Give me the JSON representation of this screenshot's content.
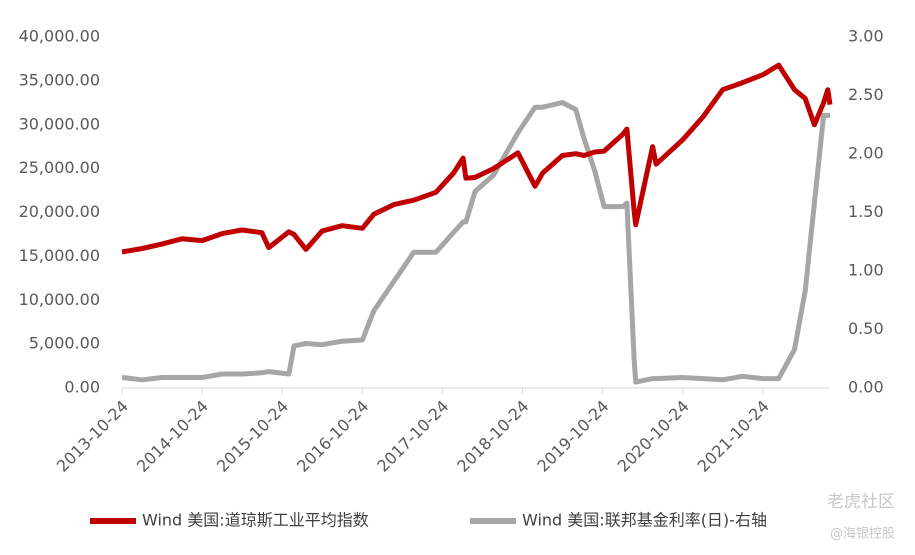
{
  "chart_data": {
    "type": "line",
    "x": [
      "2013-10-24",
      "2014-01-24",
      "2014-04-24",
      "2014-07-24",
      "2014-10-24",
      "2015-01-24",
      "2015-04-24",
      "2015-07-24",
      "2015-08-24",
      "2015-11-24",
      "2015-12-17",
      "2016-02-10",
      "2016-04-24",
      "2016-07-24",
      "2016-10-24",
      "2016-12-15",
      "2017-03-16",
      "2017-06-15",
      "2017-09-24",
      "2017-12-14",
      "2018-01-26",
      "2018-02-08",
      "2018-03-22",
      "2018-06-14",
      "2018-10-03",
      "2018-12-20",
      "2019-01-24",
      "2019-04-24",
      "2019-06-24",
      "2019-08-01",
      "2019-09-19",
      "2019-10-31",
      "2020-01-24",
      "2020-02-12",
      "2020-03-16",
      "2020-03-23",
      "2020-06-08",
      "2020-06-24",
      "2020-10-24",
      "2021-01-24",
      "2021-04-24",
      "2021-07-24",
      "2021-10-24",
      "2022-01-04",
      "2022-03-17",
      "2022-05-05",
      "2022-06-16",
      "2022-07-28",
      "2022-08-16",
      "2022-08-26"
    ],
    "series": [
      {
        "name": "Wind 美国:道琼斯工业平均指数",
        "color": "#c00000",
        "values": [
          15500,
          15900,
          16400,
          17000,
          16800,
          17600,
          18000,
          17700,
          16000,
          17800,
          17500,
          15800,
          17900,
          18500,
          18200,
          19800,
          20900,
          21400,
          22300,
          24500,
          26200,
          23900,
          24000,
          25000,
          26800,
          23000,
          24500,
          26500,
          26700,
          26500,
          26900,
          27000,
          28900,
          29500,
          20200,
          18600,
          27500,
          25500,
          28300,
          30900,
          34000,
          34800,
          35700,
          36800,
          34000,
          33000,
          30000,
          32500,
          34000,
          32300
        ]
      },
      {
        "name": "Wind 美国:联邦基金利率(日)-右轴",
        "color": "#a6a6a6",
        "axis": "y2",
        "values": [
          0.09,
          0.07,
          0.09,
          0.09,
          0.09,
          0.12,
          0.12,
          0.13,
          0.14,
          0.12,
          0.36,
          0.38,
          0.37,
          0.4,
          0.41,
          0.66,
          0.91,
          1.16,
          1.16,
          1.33,
          1.42,
          1.42,
          1.68,
          1.82,
          2.18,
          2.4,
          2.4,
          2.44,
          2.38,
          2.13,
          1.85,
          1.55,
          1.55,
          1.58,
          0.25,
          0.05,
          0.08,
          0.08,
          0.09,
          0.08,
          0.07,
          0.1,
          0.08,
          0.08,
          0.33,
          0.83,
          1.58,
          2.33,
          2.33,
          2.33
        ]
      }
    ],
    "xlim": [
      "2013-10-24",
      "2022-08-26"
    ],
    "xticks": [
      "2013-10-24",
      "2014-10-24",
      "2015-10-24",
      "2016-10-24",
      "2017-10-24",
      "2018-10-24",
      "2019-10-24",
      "2020-10-24",
      "2021-10-24"
    ],
    "ylim": [
      0,
      40000
    ],
    "yticks": [
      {
        "value": 0,
        "label": "0.00"
      },
      {
        "value": 5000,
        "label": "5,000.00"
      },
      {
        "value": 10000,
        "label": "10,000.00"
      },
      {
        "value": 15000,
        "label": "15,000.00"
      },
      {
        "value": 20000,
        "label": "20,000.00"
      },
      {
        "value": 25000,
        "label": "25,000.00"
      },
      {
        "value": 30000,
        "label": "30,000.00"
      },
      {
        "value": 35000,
        "label": "35,000.00"
      },
      {
        "value": 40000,
        "label": "40,000.00"
      }
    ],
    "y2lim": [
      0,
      3
    ],
    "y2ticks": [
      {
        "value": 0,
        "label": "0.00"
      },
      {
        "value": 0.5,
        "label": "0.50"
      },
      {
        "value": 1,
        "label": "1.00"
      },
      {
        "value": 1.5,
        "label": "1.50"
      },
      {
        "value": 2,
        "label": "2.00"
      },
      {
        "value": 2.5,
        "label": "2.50"
      },
      {
        "value": 3,
        "label": "3.00"
      }
    ],
    "legend": "bottom",
    "watermark": [
      "老虎社区",
      "@海银控股"
    ]
  }
}
